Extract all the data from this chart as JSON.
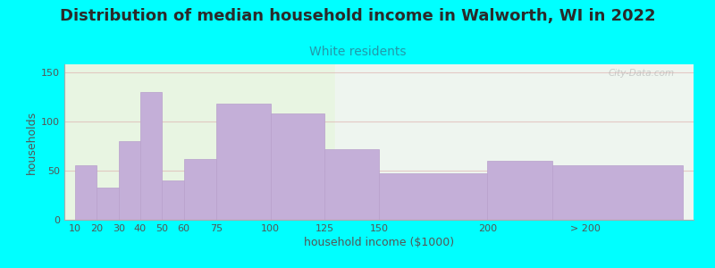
{
  "title": "Distribution of median household income in Walworth, WI in 2022",
  "subtitle": "White residents",
  "xlabel": "household income ($1000)",
  "ylabel": "households",
  "background_color": "#00FFFF",
  "plot_bg_color_left": "#e8f5e2",
  "plot_bg_color_right": "#f0f5f2",
  "bar_color": "#c4afd8",
  "bar_edge_color": "#b8a0cc",
  "title_color": "#2a2a2a",
  "subtitle_color": "#2299aa",
  "axis_label_color": "#555555",
  "tick_label_color": "#555555",
  "watermark": "City-Data.com",
  "categories": [
    "10",
    "20",
    "30",
    "40",
    "50",
    "60",
    "75",
    "100",
    "125",
    "150",
    "200",
    "> 200"
  ],
  "values": [
    55,
    33,
    80,
    130,
    40,
    62,
    118,
    108,
    72,
    47,
    60,
    55
  ],
  "bar_left_edges": [
    10,
    20,
    30,
    40,
    50,
    60,
    75,
    100,
    125,
    150,
    200,
    230
  ],
  "bar_widths": [
    10,
    10,
    10,
    10,
    10,
    15,
    25,
    25,
    25,
    50,
    30,
    60
  ],
  "xtick_positions": [
    10,
    20,
    30,
    40,
    50,
    60,
    75,
    100,
    125,
    150,
    200,
    245
  ],
  "yticks": [
    0,
    50,
    100,
    150
  ],
  "ylim": [
    0,
    158
  ],
  "xlim_left": 5,
  "xlim_right": 295,
  "bg_split_x": 130,
  "grid_color": "#ddaaaa",
  "grid_alpha": 0.6,
  "title_fontsize": 13,
  "subtitle_fontsize": 10,
  "axis_fontsize": 9,
  "tick_fontsize": 8
}
